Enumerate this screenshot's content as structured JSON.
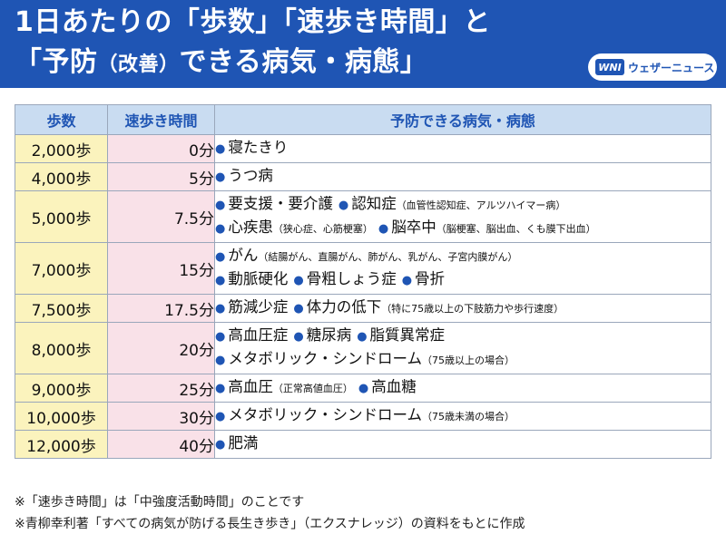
{
  "title": {
    "line1": "1日あたりの「歩数」「速歩き時間」と",
    "line2a": "「予防",
    "line2b": "（改善）",
    "line2c": "できる病気・病態」"
  },
  "logo": {
    "mark": "WNI",
    "text": "ウェザーニュース"
  },
  "table": {
    "headers": {
      "steps": "歩数",
      "time": "速歩き時間",
      "diseases": "予防できる病気・病態"
    },
    "bullet": "●",
    "rows": [
      {
        "steps": "2,000歩",
        "time": "0分",
        "lines": [
          [
            {
              "t": "寝たきり"
            }
          ]
        ]
      },
      {
        "steps": "4,000歩",
        "time": "5分",
        "lines": [
          [
            {
              "t": "うつ病"
            }
          ]
        ]
      },
      {
        "steps": "5,000歩",
        "time": "7.5分",
        "lines": [
          [
            {
              "t": "要支援・要介護"
            },
            {
              "t": "認知症",
              "n": "（血管性認知症、アルツハイマー病）"
            }
          ],
          [
            {
              "t": "心疾患",
              "n": "（狭心症、心筋梗塞）"
            },
            {
              "t": "脳卒中",
              "n": "（脳梗塞、脳出血、くも膜下出血）"
            }
          ]
        ]
      },
      {
        "steps": "7,000歩",
        "time": "15分",
        "lines": [
          [
            {
              "t": "がん",
              "n": "（結腸がん、直腸がん、肺がん、乳がん、子宮内膜がん）"
            }
          ],
          [
            {
              "t": "動脈硬化"
            },
            {
              "t": "骨粗しょう症"
            },
            {
              "t": "骨折"
            }
          ]
        ]
      },
      {
        "steps": "7,500歩",
        "time": "17.5分",
        "lines": [
          [
            {
              "t": "筋減少症"
            },
            {
              "t": "体力の低下",
              "n": "（特に75歳以上の下肢筋力や歩行速度）"
            }
          ]
        ]
      },
      {
        "steps": "8,000歩",
        "time": "20分",
        "lines": [
          [
            {
              "t": "高血圧症"
            },
            {
              "t": "糖尿病"
            },
            {
              "t": "脂質異常症"
            }
          ],
          [
            {
              "t": "メタボリック・シンドローム",
              "n": "（75歳以上の場合）"
            }
          ]
        ]
      },
      {
        "steps": "9,000歩",
        "time": "25分",
        "lines": [
          [
            {
              "t": "高血圧",
              "n": "（正常高値血圧）"
            },
            {
              "t": "高血糖"
            }
          ]
        ]
      },
      {
        "steps": "10,000歩",
        "time": "30分",
        "lines": [
          [
            {
              "t": "メタボリック・シンドローム",
              "n": "（75歳未満の場合）"
            }
          ]
        ]
      },
      {
        "steps": "12,000歩",
        "time": "40分",
        "lines": [
          [
            {
              "t": "肥満"
            }
          ]
        ]
      }
    ]
  },
  "footnotes": [
    "※「速歩き時間」は「中強度活動時間」のことです",
    "※青柳幸利著「すべての病気が防げる長生き歩き」（エクスナレッジ）の資料をもとに作成"
  ],
  "colors": {
    "header_bg": "#1f55b4",
    "table_header_bg": "#c9dcf1",
    "steps_bg": "#fbf3bd",
    "time_bg": "#f9e1e8",
    "bullet": "#1f55b4"
  }
}
